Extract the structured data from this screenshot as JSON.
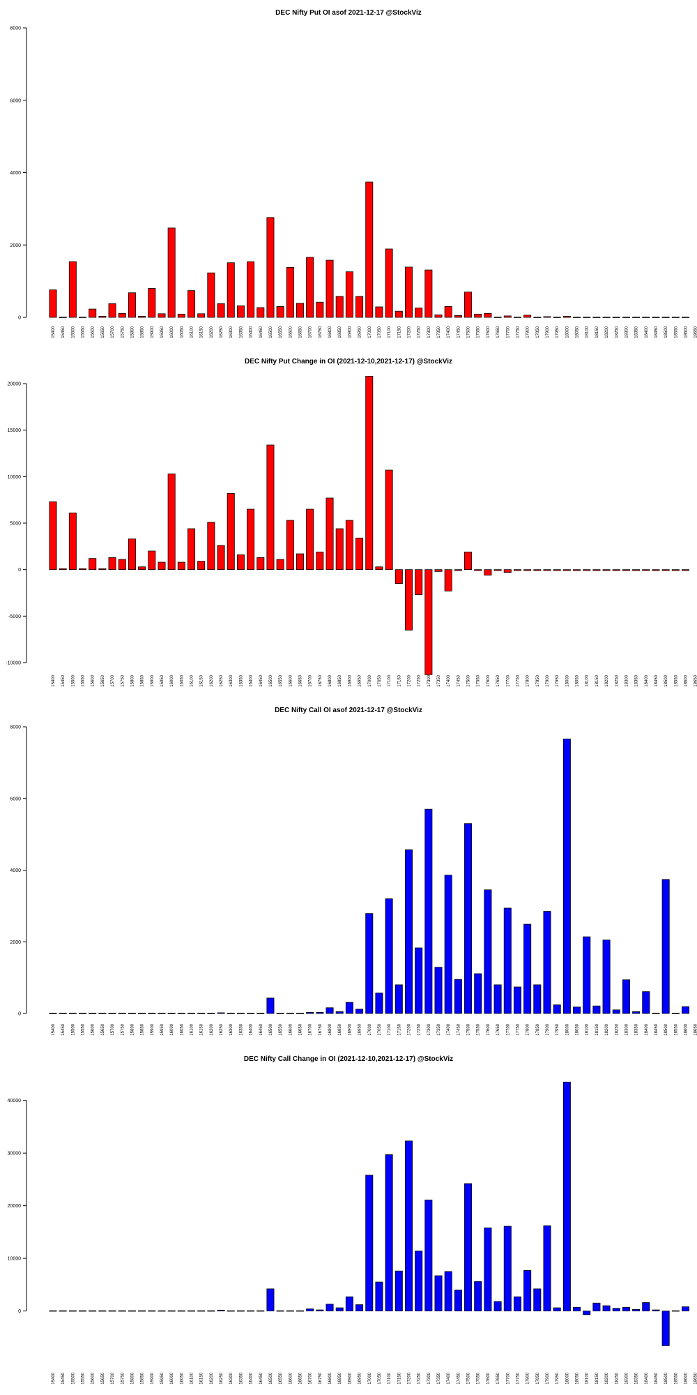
{
  "strike_labels": [
    "15400",
    "15450",
    "15500",
    "15550",
    "15600",
    "15650",
    "15700",
    "15750",
    "15800",
    "15850",
    "15900",
    "15950",
    "16000",
    "16050",
    "16100",
    "16150",
    "16200",
    "16250",
    "16300",
    "16350",
    "16400",
    "16450",
    "16500",
    "16550",
    "16600",
    "16650",
    "16700",
    "16750",
    "16800",
    "16850",
    "16900",
    "16950",
    "17000",
    "17050",
    "17100",
    "17150",
    "17200",
    "17250",
    "17300",
    "17350",
    "17400",
    "17450",
    "17500",
    "17550",
    "17600",
    "17650",
    "17700",
    "17750",
    "17800",
    "17850",
    "17900",
    "17950",
    "18000",
    "18050",
    "18100",
    "18150",
    "18200",
    "18250",
    "18300",
    "18350",
    "18400",
    "18450",
    "18500",
    "18550",
    "18600",
    "18650"
  ],
  "chart_data": [
    {
      "type": "bar",
      "title": "DEC Nifty Put OI asof 2021-12-17 @StockViz",
      "color": "#ff0000",
      "ylim": [
        0,
        8000
      ],
      "yticks": [
        0,
        2000,
        4000,
        6000,
        8000
      ],
      "values": [
        760,
        10,
        1540,
        10,
        230,
        30,
        380,
        110,
        680,
        30,
        800,
        100,
        2470,
        90,
        740,
        100,
        1230,
        380,
        1510,
        320,
        1540,
        270,
        2760,
        300,
        1380,
        390,
        1660,
        420,
        1580,
        580,
        1260,
        580,
        3740,
        290,
        1890,
        170,
        1390,
        260,
        1310,
        70,
        300,
        50,
        700,
        90,
        110,
        10,
        40,
        10,
        60,
        10,
        20,
        5,
        30,
        5,
        10,
        5,
        10,
        5,
        5,
        5,
        5,
        5,
        10,
        5,
        5,
        5
      ]
    },
    {
      "type": "bar",
      "title": "DEC Nifty Put Change in OI (2021-12-10,2021-12-17) @StockViz",
      "color": "#ff0000",
      "ylim": [
        -10000,
        20000
      ],
      "yticks": [
        -10000,
        -5000,
        0,
        5000,
        10000,
        15000,
        20000
      ],
      "values": [
        7300,
        100,
        6100,
        100,
        1200,
        100,
        1300,
        1100,
        3300,
        300,
        2000,
        800,
        10300,
        800,
        4400,
        900,
        5100,
        2600,
        8200,
        1600,
        6500,
        1300,
        13400,
        1100,
        5300,
        1700,
        6500,
        1900,
        7700,
        4400,
        5300,
        3400,
        20800,
        300,
        10700,
        -1500,
        -6500,
        -2700,
        -11300,
        -200,
        -2300,
        -100,
        1900,
        -100,
        -600,
        -100,
        -300,
        -100,
        -100,
        -100,
        -100,
        -100,
        -100,
        -100,
        -100,
        -100,
        -100,
        -100,
        -100,
        -100,
        -100,
        -100,
        -100,
        -100,
        -100,
        -100
      ]
    },
    {
      "type": "bar",
      "title": "DEC Nifty Call OI asof 2021-12-17 @StockViz",
      "color": "#0000ff",
      "ylim": [
        0,
        8000
      ],
      "yticks": [
        0,
        2000,
        4000,
        6000,
        8000
      ],
      "values": [
        5,
        5,
        5,
        5,
        5,
        5,
        5,
        5,
        5,
        5,
        5,
        5,
        10,
        5,
        5,
        5,
        5,
        20,
        5,
        5,
        5,
        5,
        430,
        10,
        10,
        5,
        30,
        30,
        160,
        50,
        310,
        120,
        2790,
        570,
        3200,
        800,
        4570,
        1830,
        5700,
        1290,
        3860,
        950,
        5300,
        1110,
        3450,
        800,
        2940,
        740,
        2490,
        800,
        2850,
        240,
        7660,
        180,
        2140,
        210,
        2050,
        100,
        940,
        50,
        610,
        10,
        3740,
        10,
        190,
        5
      ]
    },
    {
      "type": "bar",
      "title": "DEC Nifty Call Change in OI (2021-12-10,2021-12-17) @StockViz",
      "color": "#0000ff",
      "ylim": [
        -10000,
        45000
      ],
      "yticks": [
        0,
        10000,
        20000,
        30000,
        40000
      ],
      "values": [
        50,
        50,
        50,
        50,
        50,
        50,
        50,
        50,
        50,
        50,
        50,
        50,
        100,
        50,
        50,
        50,
        100,
        150,
        50,
        50,
        100,
        50,
        4200,
        100,
        100,
        50,
        400,
        200,
        1300,
        600,
        2700,
        1200,
        25800,
        5500,
        29700,
        7600,
        32300,
        11400,
        21100,
        6700,
        7500,
        4000,
        24200,
        5600,
        15800,
        1800,
        16100,
        2700,
        7700,
        4200,
        16200,
        600,
        43500,
        700,
        -700,
        1500,
        1000,
        500,
        700,
        300,
        1600,
        200,
        -6600,
        100,
        800,
        100
      ]
    }
  ]
}
